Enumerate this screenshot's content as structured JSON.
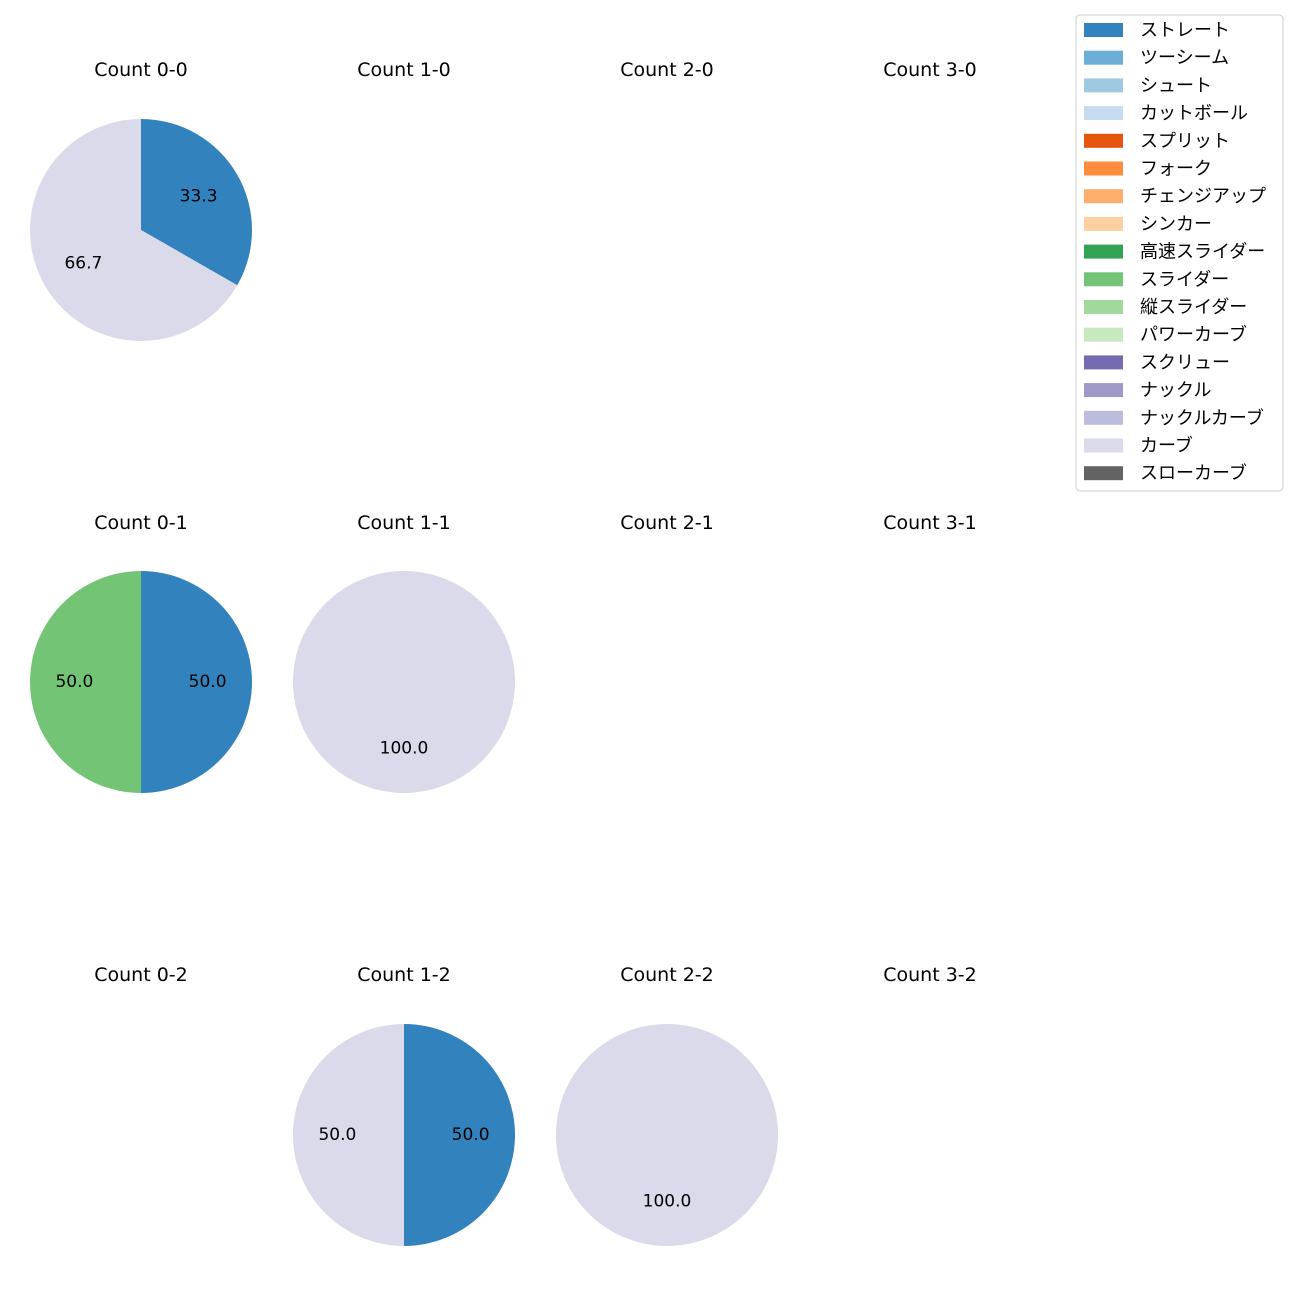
{
  "chart_data": {
    "type": "pie",
    "legend": {
      "placement": "top-right",
      "entries": [
        {
          "name": "ストレート",
          "color": "#3182bd"
        },
        {
          "name": "ツーシーム",
          "color": "#6baed6"
        },
        {
          "name": "シュート",
          "color": "#9ecae1"
        },
        {
          "name": "カットボール",
          "color": "#c6dbef"
        },
        {
          "name": "スプリット",
          "color": "#e6550d"
        },
        {
          "name": "フォーク",
          "color": "#fd8d3c"
        },
        {
          "name": "チェンジアップ",
          "color": "#fdae6b"
        },
        {
          "name": "シンカー",
          "color": "#fdd0a2"
        },
        {
          "name": "高速スライダー",
          "color": "#31a354"
        },
        {
          "name": "スライダー",
          "color": "#74c476"
        },
        {
          "name": "縦スライダー",
          "color": "#a1d99b"
        },
        {
          "name": "パワーカーブ",
          "color": "#c7e9c0"
        },
        {
          "name": "スクリュー",
          "color": "#756bb1"
        },
        {
          "name": "ナックル",
          "color": "#9e9ac8"
        },
        {
          "name": "ナックルカーブ",
          "color": "#bcbddc"
        },
        {
          "name": "カーブ",
          "color": "#dadaeb"
        },
        {
          "name": "スローカーブ",
          "color": "#636363"
        }
      ]
    },
    "panels": [
      {
        "title": "Count 0-0",
        "row": 0,
        "col": 0,
        "slices": [
          {
            "pitch": "ストレート",
            "value": 33.3,
            "label": "33.3"
          },
          {
            "pitch": "カーブ",
            "value": 66.7,
            "label": "66.7"
          }
        ]
      },
      {
        "title": "Count 1-0",
        "row": 0,
        "col": 1,
        "slices": []
      },
      {
        "title": "Count 2-0",
        "row": 0,
        "col": 2,
        "slices": []
      },
      {
        "title": "Count 3-0",
        "row": 0,
        "col": 3,
        "slices": []
      },
      {
        "title": "Count 0-1",
        "row": 1,
        "col": 0,
        "slices": [
          {
            "pitch": "ストレート",
            "value": 50.0,
            "label": "50.0"
          },
          {
            "pitch": "スライダー",
            "value": 50.0,
            "label": "50.0"
          }
        ]
      },
      {
        "title": "Count 1-1",
        "row": 1,
        "col": 1,
        "slices": [
          {
            "pitch": "カーブ",
            "value": 100.0,
            "label": "100.0"
          }
        ]
      },
      {
        "title": "Count 2-1",
        "row": 1,
        "col": 2,
        "slices": []
      },
      {
        "title": "Count 3-1",
        "row": 1,
        "col": 3,
        "slices": []
      },
      {
        "title": "Count 0-2",
        "row": 2,
        "col": 0,
        "slices": []
      },
      {
        "title": "Count 1-2",
        "row": 2,
        "col": 1,
        "slices": [
          {
            "pitch": "ストレート",
            "value": 50.0,
            "label": "50.0"
          },
          {
            "pitch": "カーブ",
            "value": 50.0,
            "label": "50.0"
          }
        ]
      },
      {
        "title": "Count 2-2",
        "row": 2,
        "col": 2,
        "slices": [
          {
            "pitch": "カーブ",
            "value": 100.0,
            "label": "100.0"
          }
        ]
      },
      {
        "title": "Count 3-2",
        "row": 2,
        "col": 3,
        "slices": []
      }
    ]
  }
}
